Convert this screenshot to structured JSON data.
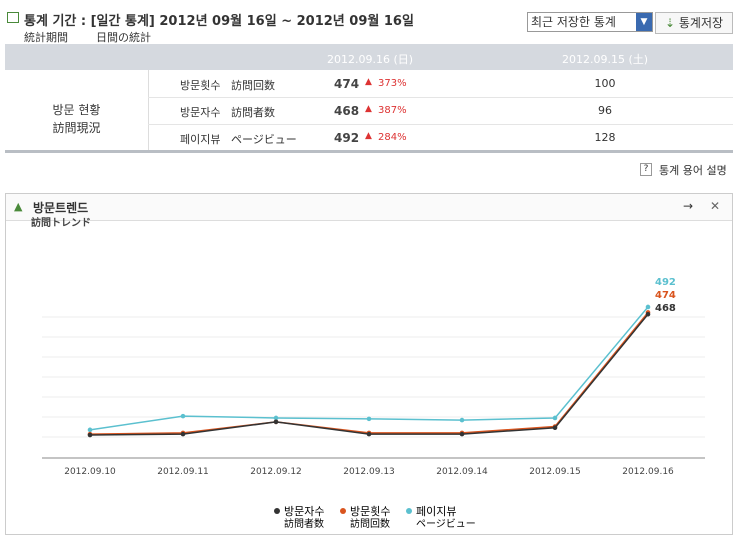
{
  "header": {
    "title": "통계 기간 : [일간 통계] 2012년 09월 16일 ~ 2012년 09월 16일",
    "tabs": [
      "統計期間",
      "日間の統計"
    ],
    "select": "최근 저장한 통계",
    "button": "통계저장"
  },
  "table": {
    "columns": [
      "2012.09.16 (日)",
      "2012.09.15 (土)"
    ],
    "group": [
      "방문 현황",
      "訪問現況"
    ],
    "rows": [
      [
        "방문횟수",
        "訪問回数",
        "474",
        "373%",
        "100"
      ],
      [
        "방문자수",
        "訪問者数",
        "468",
        "387%",
        "96"
      ],
      [
        "페이지뷰",
        "ページビュー",
        "492",
        "284%",
        "128"
      ]
    ]
  },
  "help_link": "통계 용어 설명",
  "panel": {
    "title": "방문트렌드",
    "subtitle": "訪問トレンド"
  },
  "chart_data": {
    "type": "line",
    "categories": [
      "2012.09.10",
      "2012.09.11",
      "2012.09.12",
      "2012.09.13",
      "2012.09.14",
      "2012.09.15",
      "2012.09.16"
    ],
    "series": [
      {
        "name": "방문자수",
        "subname": "訪問者数",
        "color": "#333333",
        "values": [
          72,
          75,
          115,
          75,
          75,
          96,
          468
        ]
      },
      {
        "name": "방문횟수",
        "subname": "訪問回数",
        "color": "#d9541e",
        "values": [
          75,
          79,
          115,
          79,
          79,
          100,
          474
        ]
      },
      {
        "name": "페이지뷰",
        "subname": "ページビュー",
        "color": "#5bc0cf",
        "values": [
          89,
          134,
          128,
          125,
          121,
          128,
          492
        ]
      }
    ],
    "ylim": [
      0,
      600
    ],
    "grid": true
  }
}
